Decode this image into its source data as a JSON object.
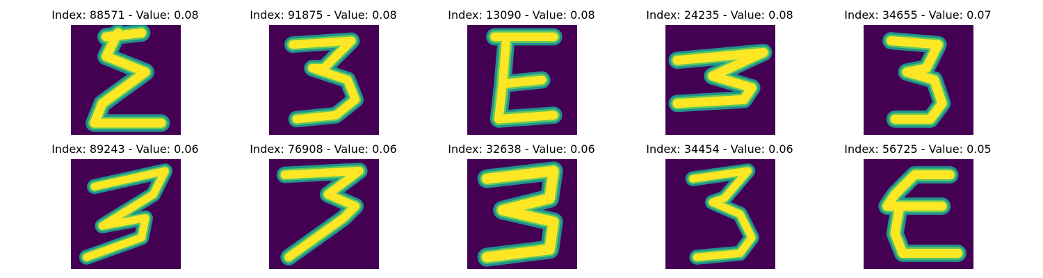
{
  "colors": {
    "background": "#440154",
    "stroke_edge": "#21918c",
    "stroke_mid": "#5ec962",
    "stroke_core": "#fde725"
  },
  "panels": [
    {
      "index": "88571",
      "value": "0.08",
      "title": "Index: 88571 - Value: 0.08",
      "glyph": "sigma"
    },
    {
      "index": "91875",
      "value": "0.08",
      "title": "Index: 91875 - Value: 0.08",
      "glyph": "three"
    },
    {
      "index": "13090",
      "value": "0.08",
      "title": "Index: 13090 - Value: 0.08",
      "glyph": "e"
    },
    {
      "index": "24235",
      "value": "0.08",
      "title": "Index: 24235 - Value: 0.08",
      "glyph": "three-rotated"
    },
    {
      "index": "34655",
      "value": "0.07",
      "title": "Index: 34655 - Value: 0.07",
      "glyph": "three"
    },
    {
      "index": "89243",
      "value": "0.06",
      "title": "Index: 89243 - Value: 0.06",
      "glyph": "three-slanted"
    },
    {
      "index": "76908",
      "value": "0.06",
      "title": "Index: 76908 - Value: 0.06",
      "glyph": "three-seven"
    },
    {
      "index": "32638",
      "value": "0.06",
      "title": "Index: 32638 - Value: 0.06",
      "glyph": "three-bold"
    },
    {
      "index": "34454",
      "value": "0.06",
      "title": "Index: 34454 - Value: 0.06",
      "glyph": "three"
    },
    {
      "index": "56725",
      "value": "0.05",
      "title": "Index: 56725 - Value: 0.05",
      "glyph": "e-round"
    }
  ]
}
